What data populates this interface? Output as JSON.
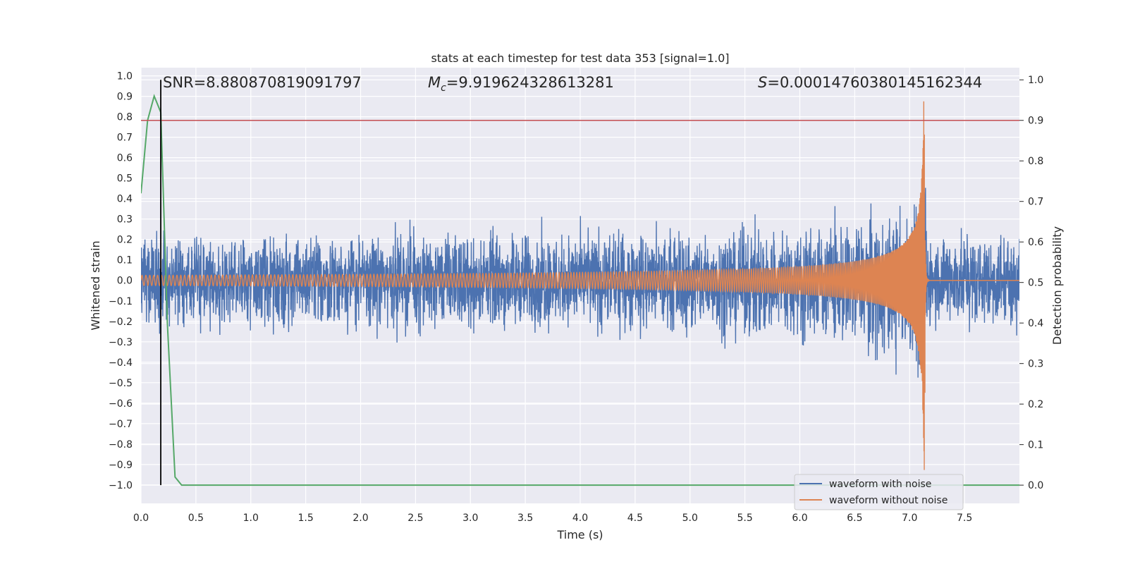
{
  "chart_data": {
    "type": "line",
    "title": "stats at each timestep for test data 353 [signal=1.0]",
    "xlabel": "Time (s)",
    "ylabel": "Whitened strain",
    "y2label": "Detection probability",
    "xlim": [
      0.0,
      8.0
    ],
    "ylim": [
      -1.09,
      1.04
    ],
    "y2lim": [
      -0.045,
      1.03
    ],
    "xticks": [
      "0.0",
      "0.5",
      "1.0",
      "1.5",
      "2.0",
      "2.5",
      "3.0",
      "3.5",
      "4.0",
      "4.5",
      "5.0",
      "5.5",
      "6.0",
      "6.5",
      "7.0",
      "7.5"
    ],
    "yticks": [
      "1.0",
      "0.9",
      "0.8",
      "0.7",
      "0.6",
      "0.5",
      "0.4",
      "0.3",
      "0.2",
      "0.1",
      "0.0",
      "−0.1",
      "−0.2",
      "−0.3",
      "−0.4",
      "−0.5",
      "−0.6",
      "−0.7",
      "−0.8",
      "−0.9",
      "−1.0"
    ],
    "y2ticks": [
      "0.0",
      "0.1",
      "0.2",
      "0.3",
      "0.4",
      "0.5",
      "0.6",
      "0.7",
      "0.8",
      "0.9",
      "1.0"
    ],
    "grid": true,
    "legend_position": "lower-right",
    "annotations": {
      "snr": "SNR=8.880870819091797",
      "mc_symbol": "M",
      "mc_sub": "c",
      "mc_value": "=9.919624328613281",
      "s_symbol": "S",
      "s_value": "=0.00014760380145162344"
    },
    "series": [
      {
        "name": "waveform with noise",
        "color": "#4c72b0",
        "description_envelope": {
          "x": [
            0.0,
            1.0,
            2.0,
            3.0,
            4.0,
            5.0,
            5.5,
            6.0,
            6.5,
            6.8,
            7.0,
            7.1,
            7.14,
            7.16,
            7.5,
            8.0
          ],
          "upper": [
            0.34,
            0.35,
            0.35,
            0.36,
            0.36,
            0.37,
            0.38,
            0.4,
            0.45,
            0.5,
            0.58,
            0.68,
            0.92,
            0.34,
            0.34,
            0.34
          ],
          "lower": [
            -0.34,
            -0.35,
            -0.36,
            -0.36,
            -0.37,
            -0.4,
            -0.42,
            -0.46,
            -0.52,
            -0.58,
            -0.62,
            -0.7,
            -1.0,
            -0.34,
            -0.34,
            -0.34
          ]
        }
      },
      {
        "name": "waveform without noise",
        "color": "#dd8452",
        "chirp": {
          "t_start": 0.0,
          "t_merger": 7.14,
          "amplitude_start": 0.025,
          "amplitude_peak": 0.95,
          "ringdown_end": 7.2
        }
      },
      {
        "name": "detection probability",
        "color": "#55a868",
        "axis": "right",
        "x": [
          0.0,
          0.06,
          0.12,
          0.18,
          0.24,
          0.31,
          0.37,
          8.0
        ],
        "y": [
          0.72,
          0.9,
          0.96,
          0.92,
          0.4,
          0.02,
          0.0,
          0.0
        ]
      }
    ],
    "hlines": [
      {
        "axis": "right",
        "y": 0.9,
        "color": "#c44e52"
      }
    ],
    "vlines": [
      {
        "x": 0.18,
        "color": "#000000"
      }
    ]
  }
}
